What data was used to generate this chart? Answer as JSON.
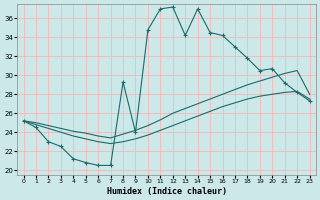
{
  "xlabel": "Humidex (Indice chaleur)",
  "xlim": [
    -0.5,
    23.5
  ],
  "ylim": [
    19.5,
    37.5
  ],
  "xticks": [
    0,
    1,
    2,
    3,
    4,
    5,
    6,
    7,
    8,
    9,
    10,
    11,
    12,
    13,
    14,
    15,
    16,
    17,
    18,
    19,
    20,
    21,
    22,
    23
  ],
  "yticks": [
    20,
    22,
    24,
    26,
    28,
    30,
    32,
    34,
    36
  ],
  "bg_color": "#cce8e8",
  "grid_color": "#f5b8b8",
  "line_color": "#1a6b6b",
  "main_x": [
    0,
    1,
    2,
    3,
    4,
    5,
    6,
    7,
    8,
    9,
    10,
    11,
    12,
    13,
    14,
    15,
    16,
    17,
    18,
    19,
    20,
    21,
    22,
    23
  ],
  "main_y": [
    25.2,
    24.5,
    23.0,
    22.5,
    21.2,
    20.8,
    20.5,
    20.5,
    29.3,
    24.0,
    34.8,
    37.0,
    37.2,
    34.2,
    37.0,
    34.5,
    34.2,
    33.0,
    31.8,
    30.5,
    30.7,
    29.2,
    28.2,
    27.3
  ],
  "line2_x": [
    0,
    1,
    2,
    3,
    4,
    5,
    6,
    7,
    8,
    9,
    10,
    11,
    12,
    13,
    14,
    15,
    16,
    17,
    18,
    19,
    20,
    21,
    22,
    23
  ],
  "line2_y": [
    25.2,
    24.8,
    24.4,
    24.0,
    23.6,
    23.3,
    23.0,
    22.8,
    23.0,
    23.3,
    23.7,
    24.2,
    24.7,
    25.2,
    25.7,
    26.2,
    26.7,
    27.1,
    27.5,
    27.8,
    28.0,
    28.2,
    28.3,
    27.5
  ],
  "line3_x": [
    0,
    1,
    2,
    3,
    4,
    5,
    6,
    7,
    8,
    9,
    10,
    11,
    12,
    13,
    14,
    15,
    16,
    17,
    18,
    19,
    20,
    21,
    22,
    23
  ],
  "line3_y": [
    25.2,
    25.0,
    24.7,
    24.4,
    24.1,
    23.9,
    23.6,
    23.4,
    23.8,
    24.2,
    24.7,
    25.3,
    26.0,
    26.5,
    27.0,
    27.5,
    28.0,
    28.5,
    29.0,
    29.4,
    29.8,
    30.2,
    30.5,
    28.0
  ]
}
